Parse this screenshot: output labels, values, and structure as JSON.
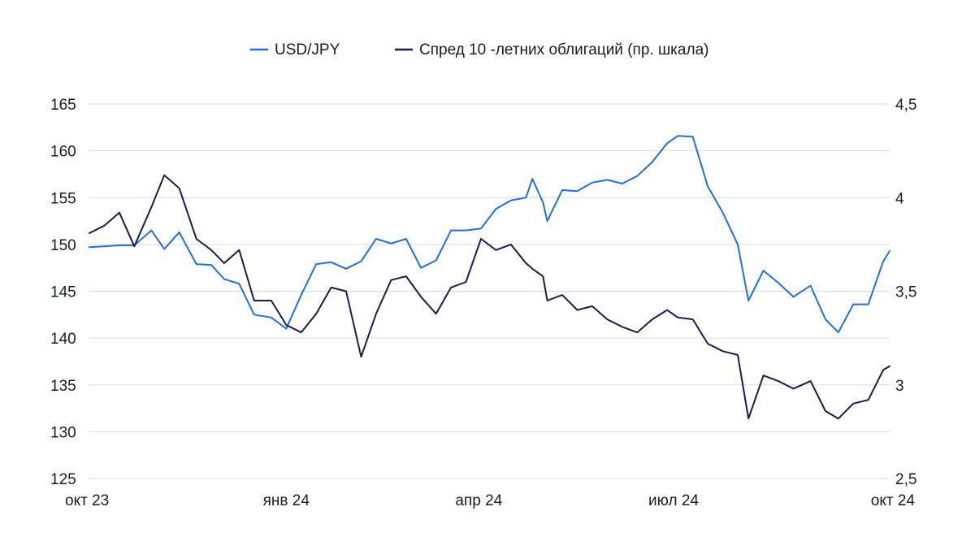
{
  "chart_data": {
    "type": "line",
    "title": "",
    "xlabel": "",
    "ylabel_left": "",
    "ylabel_right": "",
    "x_ticks": [
      "окт 23",
      "янв 24",
      "апр 24",
      "июл 24",
      "окт 24"
    ],
    "y_left": {
      "lim": [
        125,
        165
      ],
      "ticks": [
        "125",
        "130",
        "135",
        "140",
        "145",
        "150",
        "155",
        "160",
        "165"
      ]
    },
    "y_right": {
      "lim": [
        2.5,
        4.5
      ],
      "ticks": [
        "2,5",
        "3",
        "3,5",
        "4",
        "4,5"
      ]
    },
    "grid": "horizontal",
    "legend_position": "top-center",
    "series": [
      {
        "name": "USD/JPY",
        "axis": "left",
        "color": "#1f6fe0",
        "x": [
          "2023-10-02",
          "2023-10-09",
          "2023-10-16",
          "2023-10-23",
          "2023-10-31",
          "2023-11-06",
          "2023-11-13",
          "2023-11-21",
          "2023-11-28",
          "2023-12-04",
          "2023-12-11",
          "2023-12-18",
          "2023-12-26",
          "2024-01-02",
          "2024-01-09",
          "2024-01-16",
          "2024-01-23",
          "2024-01-30",
          "2024-02-06",
          "2024-02-13",
          "2024-02-20",
          "2024-02-27",
          "2024-03-05",
          "2024-03-12",
          "2024-03-19",
          "2024-03-26",
          "2024-04-02",
          "2024-04-09",
          "2024-04-16",
          "2024-04-23",
          "2024-04-26",
          "2024-05-01",
          "2024-05-03",
          "2024-05-10",
          "2024-05-17",
          "2024-05-24",
          "2024-05-31",
          "2024-06-07",
          "2024-06-14",
          "2024-06-21",
          "2024-06-28",
          "2024-07-03",
          "2024-07-10",
          "2024-07-17",
          "2024-07-24",
          "2024-07-31",
          "2024-08-05",
          "2024-08-12",
          "2024-08-19",
          "2024-08-26",
          "2024-09-03",
          "2024-09-10",
          "2024-09-16",
          "2024-09-23",
          "2024-09-30",
          "2024-10-07",
          "2024-10-10"
        ],
        "values": [
          149.7,
          149.8,
          149.9,
          149.9,
          151.5,
          149.5,
          151.3,
          147.9,
          147.8,
          146.3,
          145.8,
          142.5,
          142.2,
          141.0,
          144.6,
          147.9,
          148.1,
          147.4,
          148.2,
          150.6,
          150.1,
          150.6,
          147.5,
          148.3,
          151.5,
          151.5,
          151.7,
          153.8,
          154.7,
          155.0,
          157.0,
          154.5,
          152.5,
          155.8,
          155.7,
          156.6,
          156.9,
          156.5,
          157.3,
          158.8,
          160.8,
          161.6,
          161.5,
          156.2,
          153.4,
          150.0,
          144.0,
          147.2,
          145.9,
          144.4,
          145.6,
          142.0,
          140.6,
          143.6,
          143.6,
          148.2,
          149.3
        ]
      },
      {
        "name": "Спред 10 -летних облигаций (пр. шкала)",
        "axis": "right",
        "color": "#1b1a57",
        "x": [
          "2023-10-02",
          "2023-10-09",
          "2023-10-16",
          "2023-10-23",
          "2023-10-31",
          "2023-11-06",
          "2023-11-13",
          "2023-11-21",
          "2023-11-28",
          "2023-12-04",
          "2023-12-11",
          "2023-12-18",
          "2023-12-26",
          "2024-01-02",
          "2024-01-09",
          "2024-01-16",
          "2024-01-23",
          "2024-01-30",
          "2024-02-06",
          "2024-02-13",
          "2024-02-20",
          "2024-02-27",
          "2024-03-05",
          "2024-03-12",
          "2024-03-19",
          "2024-03-26",
          "2024-04-02",
          "2024-04-09",
          "2024-04-16",
          "2024-04-23",
          "2024-04-26",
          "2024-05-01",
          "2024-05-03",
          "2024-05-10",
          "2024-05-17",
          "2024-05-24",
          "2024-05-31",
          "2024-06-07",
          "2024-06-14",
          "2024-06-21",
          "2024-06-28",
          "2024-07-03",
          "2024-07-10",
          "2024-07-17",
          "2024-07-24",
          "2024-07-31",
          "2024-08-05",
          "2024-08-12",
          "2024-08-19",
          "2024-08-26",
          "2024-09-03",
          "2024-09-10",
          "2024-09-16",
          "2024-09-23",
          "2024-09-30",
          "2024-10-07",
          "2024-10-10"
        ],
        "values": [
          3.81,
          3.85,
          3.92,
          3.74,
          3.95,
          4.12,
          4.05,
          3.78,
          3.72,
          3.65,
          3.72,
          3.45,
          3.45,
          3.32,
          3.28,
          3.38,
          3.52,
          3.5,
          3.15,
          3.38,
          3.56,
          3.58,
          3.47,
          3.38,
          3.52,
          3.55,
          3.78,
          3.72,
          3.75,
          3.65,
          3.62,
          3.58,
          3.45,
          3.48,
          3.4,
          3.42,
          3.35,
          3.31,
          3.28,
          3.35,
          3.4,
          3.36,
          3.35,
          3.22,
          3.18,
          3.16,
          2.82,
          3.05,
          3.02,
          2.98,
          3.02,
          2.86,
          2.82,
          2.9,
          2.92,
          3.08,
          3.1
        ]
      }
    ]
  }
}
